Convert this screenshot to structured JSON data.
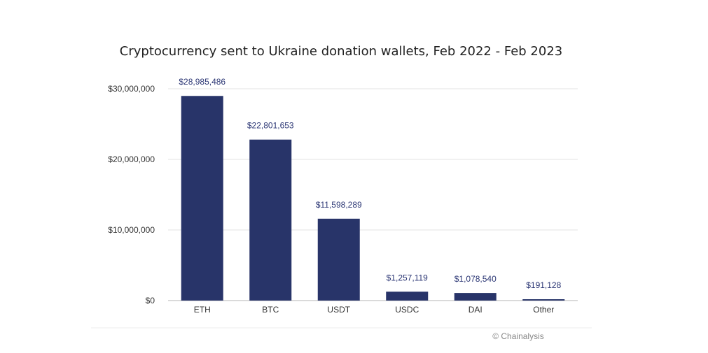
{
  "chart_data": {
    "type": "bar",
    "title": "Cryptocurrency sent to Ukraine donation wallets, Feb 2022 - Feb 2023",
    "categories": [
      "ETH",
      "BTC",
      "USDT",
      "USDC",
      "DAI",
      "Other"
    ],
    "values": [
      28985486,
      22801653,
      11598289,
      1257119,
      1078540,
      191128
    ],
    "data_labels": [
      "$28,985,486",
      "$22,801,653",
      "$11,598,289",
      "$1,257,119",
      "$1,078,540",
      "$191,128"
    ],
    "y_ticks": [
      0,
      10000000,
      20000000,
      30000000
    ],
    "y_tick_labels": [
      "$0",
      "$10,000,000",
      "$20,000,000",
      "$30,000,000"
    ],
    "ylim": [
      0,
      30000000
    ],
    "xlabel": "",
    "ylabel": "",
    "grid": true,
    "bar_color": "#283469",
    "label_color": "#2b3674",
    "grid_color": "#e3e3e3"
  },
  "credit": "© Chainalysis"
}
